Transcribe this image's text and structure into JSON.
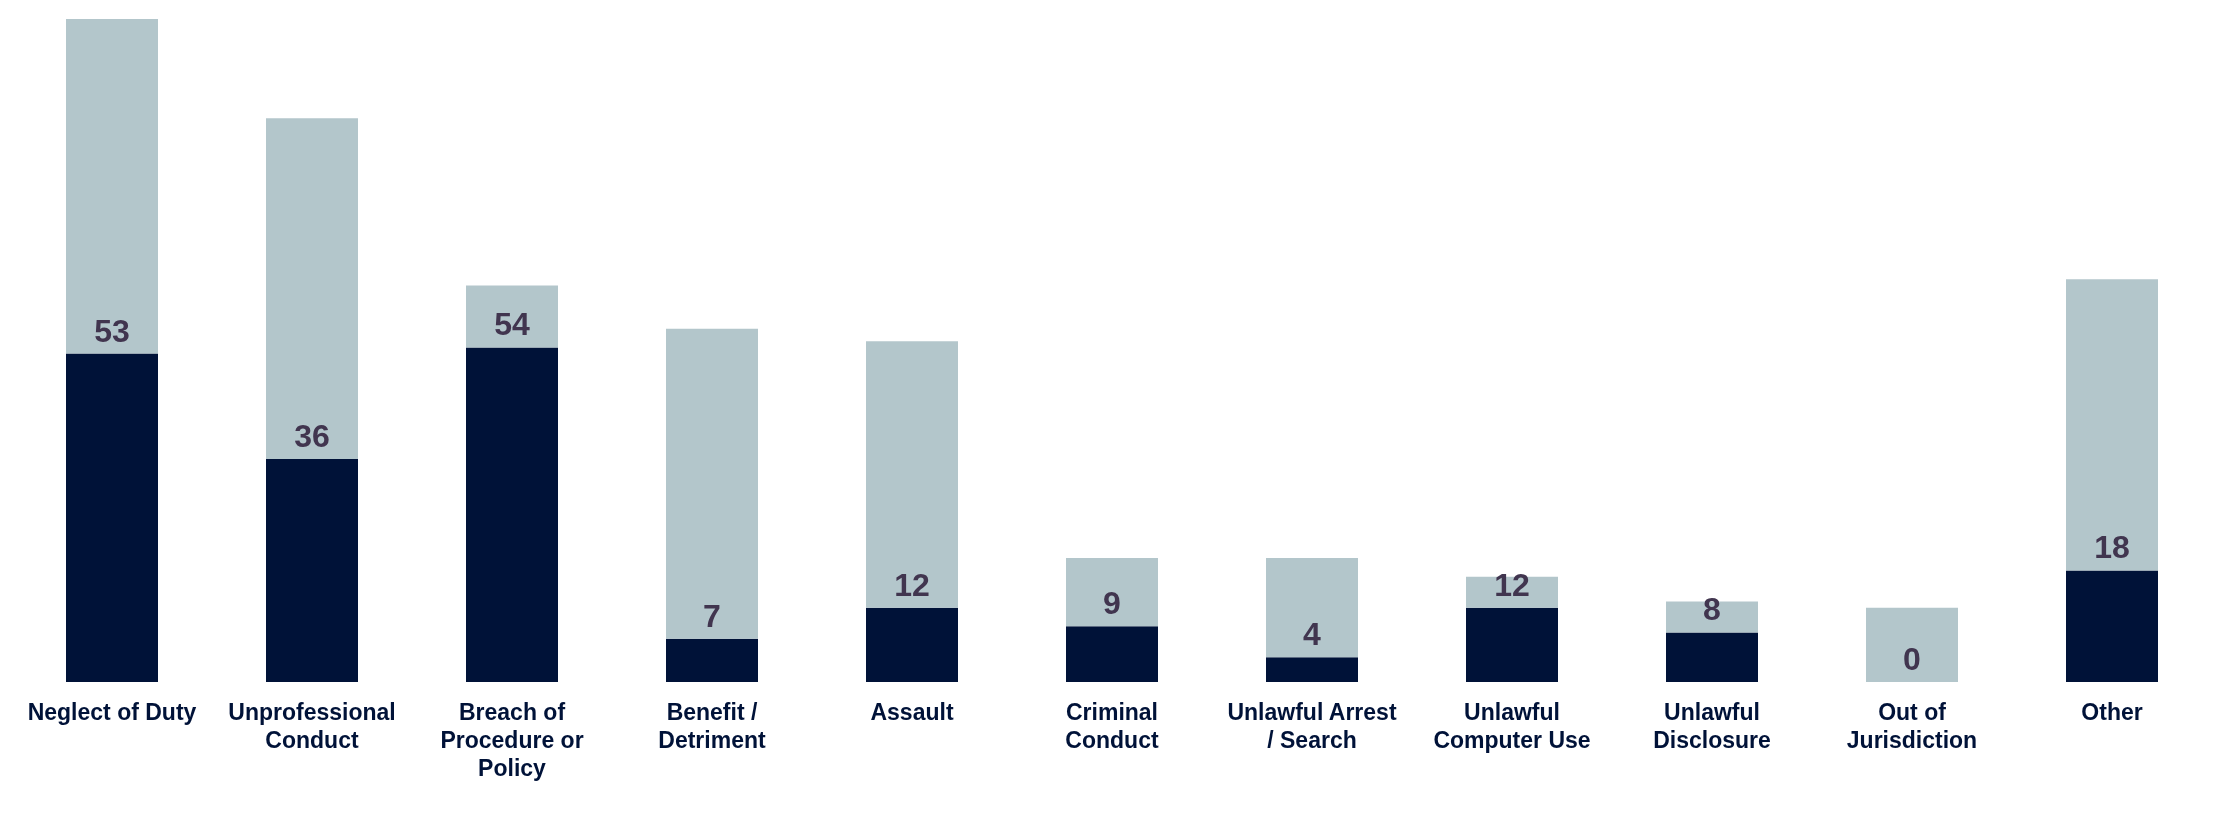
{
  "chart_data": {
    "type": "bar",
    "stacked": true,
    "categories": [
      "Neglect of Duty",
      "Unprofessional Conduct",
      "Breach of Procedure or Policy",
      "Benefit / Detriment",
      "Assault",
      "Criminal Conduct",
      "Unlawful Arrest / Search",
      "Unlawful Computer Use",
      "Unlawful Disclosure",
      "Out of Jurisdiction",
      "Other"
    ],
    "series": [
      {
        "color": "#001238",
        "values": [
          53,
          36,
          54,
          7,
          12,
          9,
          4,
          12,
          8,
          0,
          18
        ],
        "value_labels": [
          "53",
          "36",
          "54",
          "7",
          "12",
          "9",
          "4",
          "12",
          "8",
          "0",
          "18"
        ]
      },
      {
        "color": "#b3c6cb",
        "values": [
          54,
          55,
          10,
          50,
          43,
          11,
          16,
          5,
          5,
          12,
          47
        ]
      }
    ],
    "grid": false,
    "legend": false
  }
}
